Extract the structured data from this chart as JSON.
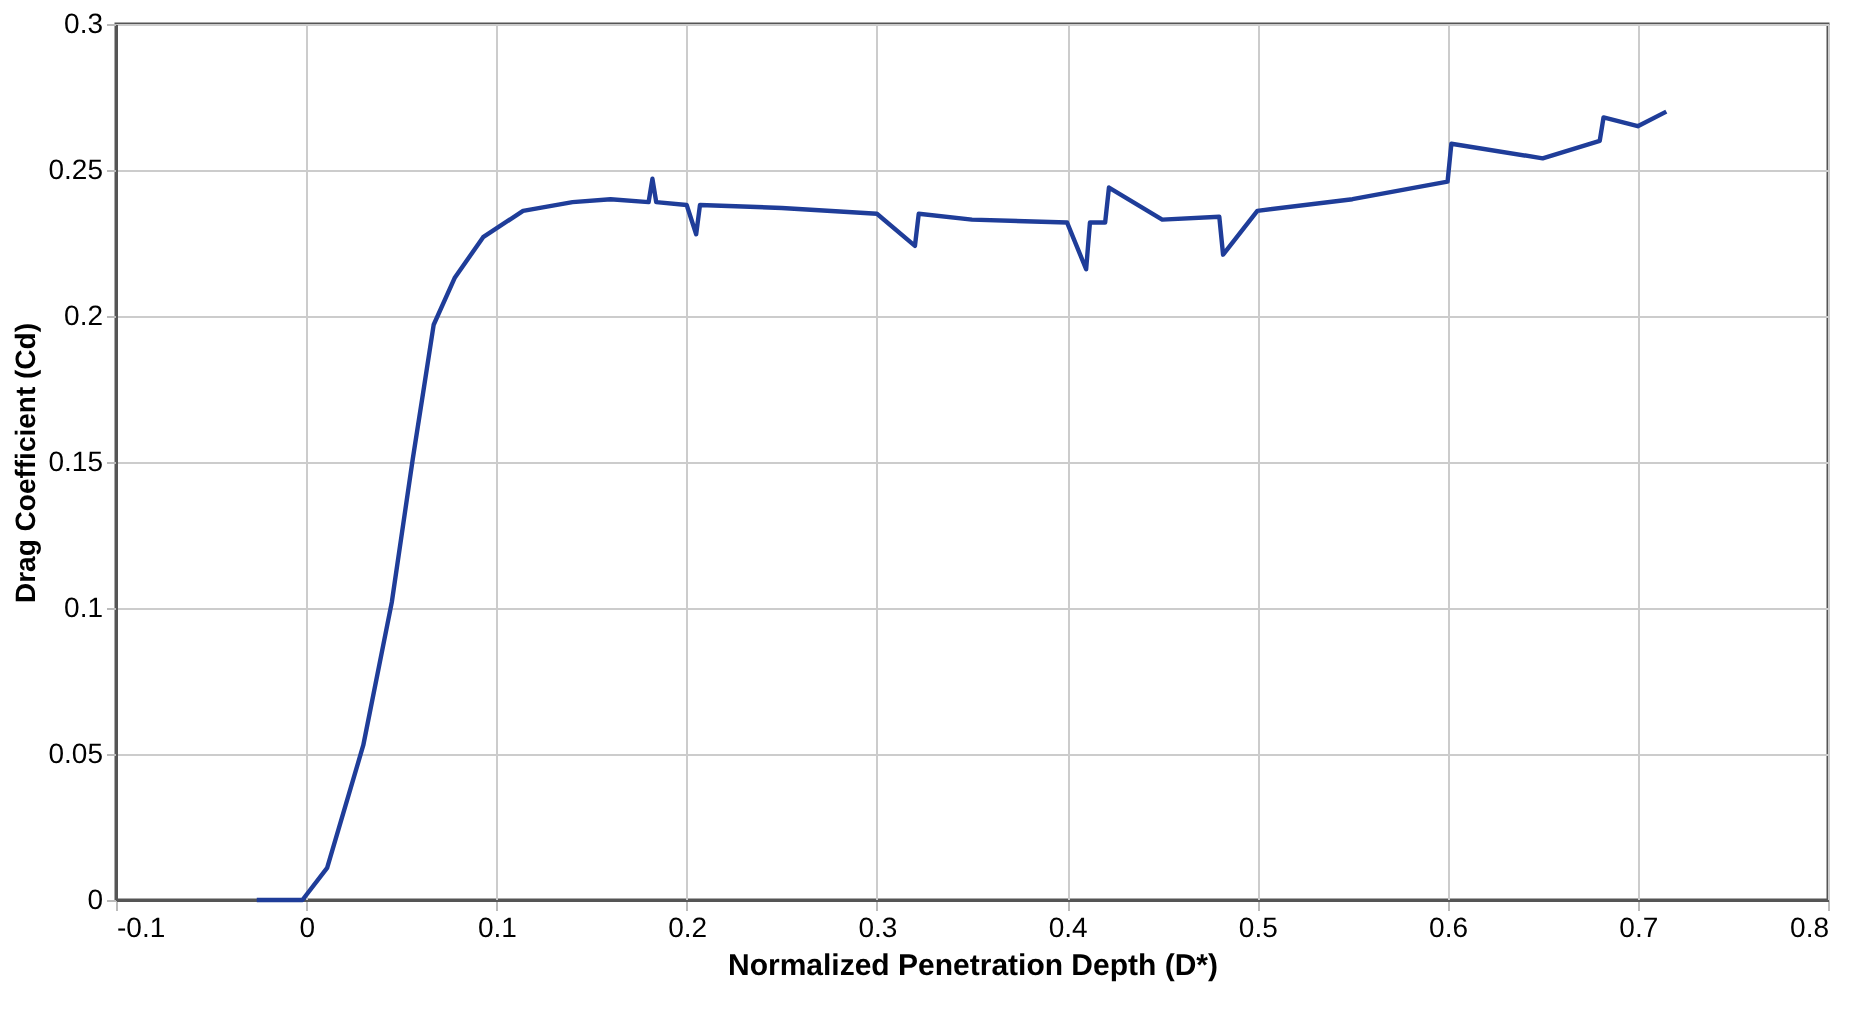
{
  "chart_data": {
    "type": "line",
    "xlabel": "Normalized Penetration Depth (D*)",
    "ylabel": "Drag Coefficient (Cd)",
    "xlim": [
      -0.1,
      0.8
    ],
    "xticks": [
      -0.1,
      0,
      0.1,
      0.2,
      0.3,
      0.4,
      0.5,
      0.6,
      0.7,
      0.8
    ],
    "ylim": [
      0,
      0.3
    ],
    "yticks": [
      0,
      0.05,
      0.1,
      0.15,
      0.2,
      0.25,
      0.3
    ],
    "grid": true,
    "marker": "none",
    "line_style": "solid",
    "series": [
      {
        "color": "#1f3d99",
        "x": [
          -0.026,
          -0.002,
          0.011,
          0.03,
          0.045,
          0.056,
          0.062,
          0.067,
          0.078,
          0.093,
          0.114,
          0.14,
          0.16,
          0.18,
          0.182,
          0.184,
          0.2,
          0.205,
          0.207,
          0.25,
          0.3,
          0.32,
          0.322,
          0.35,
          0.4,
          0.41,
          0.412,
          0.42,
          0.422,
          0.45,
          0.48,
          0.482,
          0.5,
          0.55,
          0.6,
          0.602,
          0.65,
          0.68,
          0.682,
          0.7,
          0.715
        ],
        "values": [
          0,
          0,
          0.011,
          0.053,
          0.102,
          0.151,
          0.176,
          0.197,
          0.213,
          0.227,
          0.236,
          0.239,
          0.24,
          0.239,
          0.247,
          0.239,
          0.238,
          0.228,
          0.238,
          0.237,
          0.235,
          0.224,
          0.235,
          0.233,
          0.232,
          0.216,
          0.232,
          0.232,
          0.244,
          0.233,
          0.234,
          0.221,
          0.236,
          0.24,
          0.246,
          0.259,
          0.254,
          0.26,
          0.268,
          0.265,
          0.27
        ]
      }
    ]
  }
}
